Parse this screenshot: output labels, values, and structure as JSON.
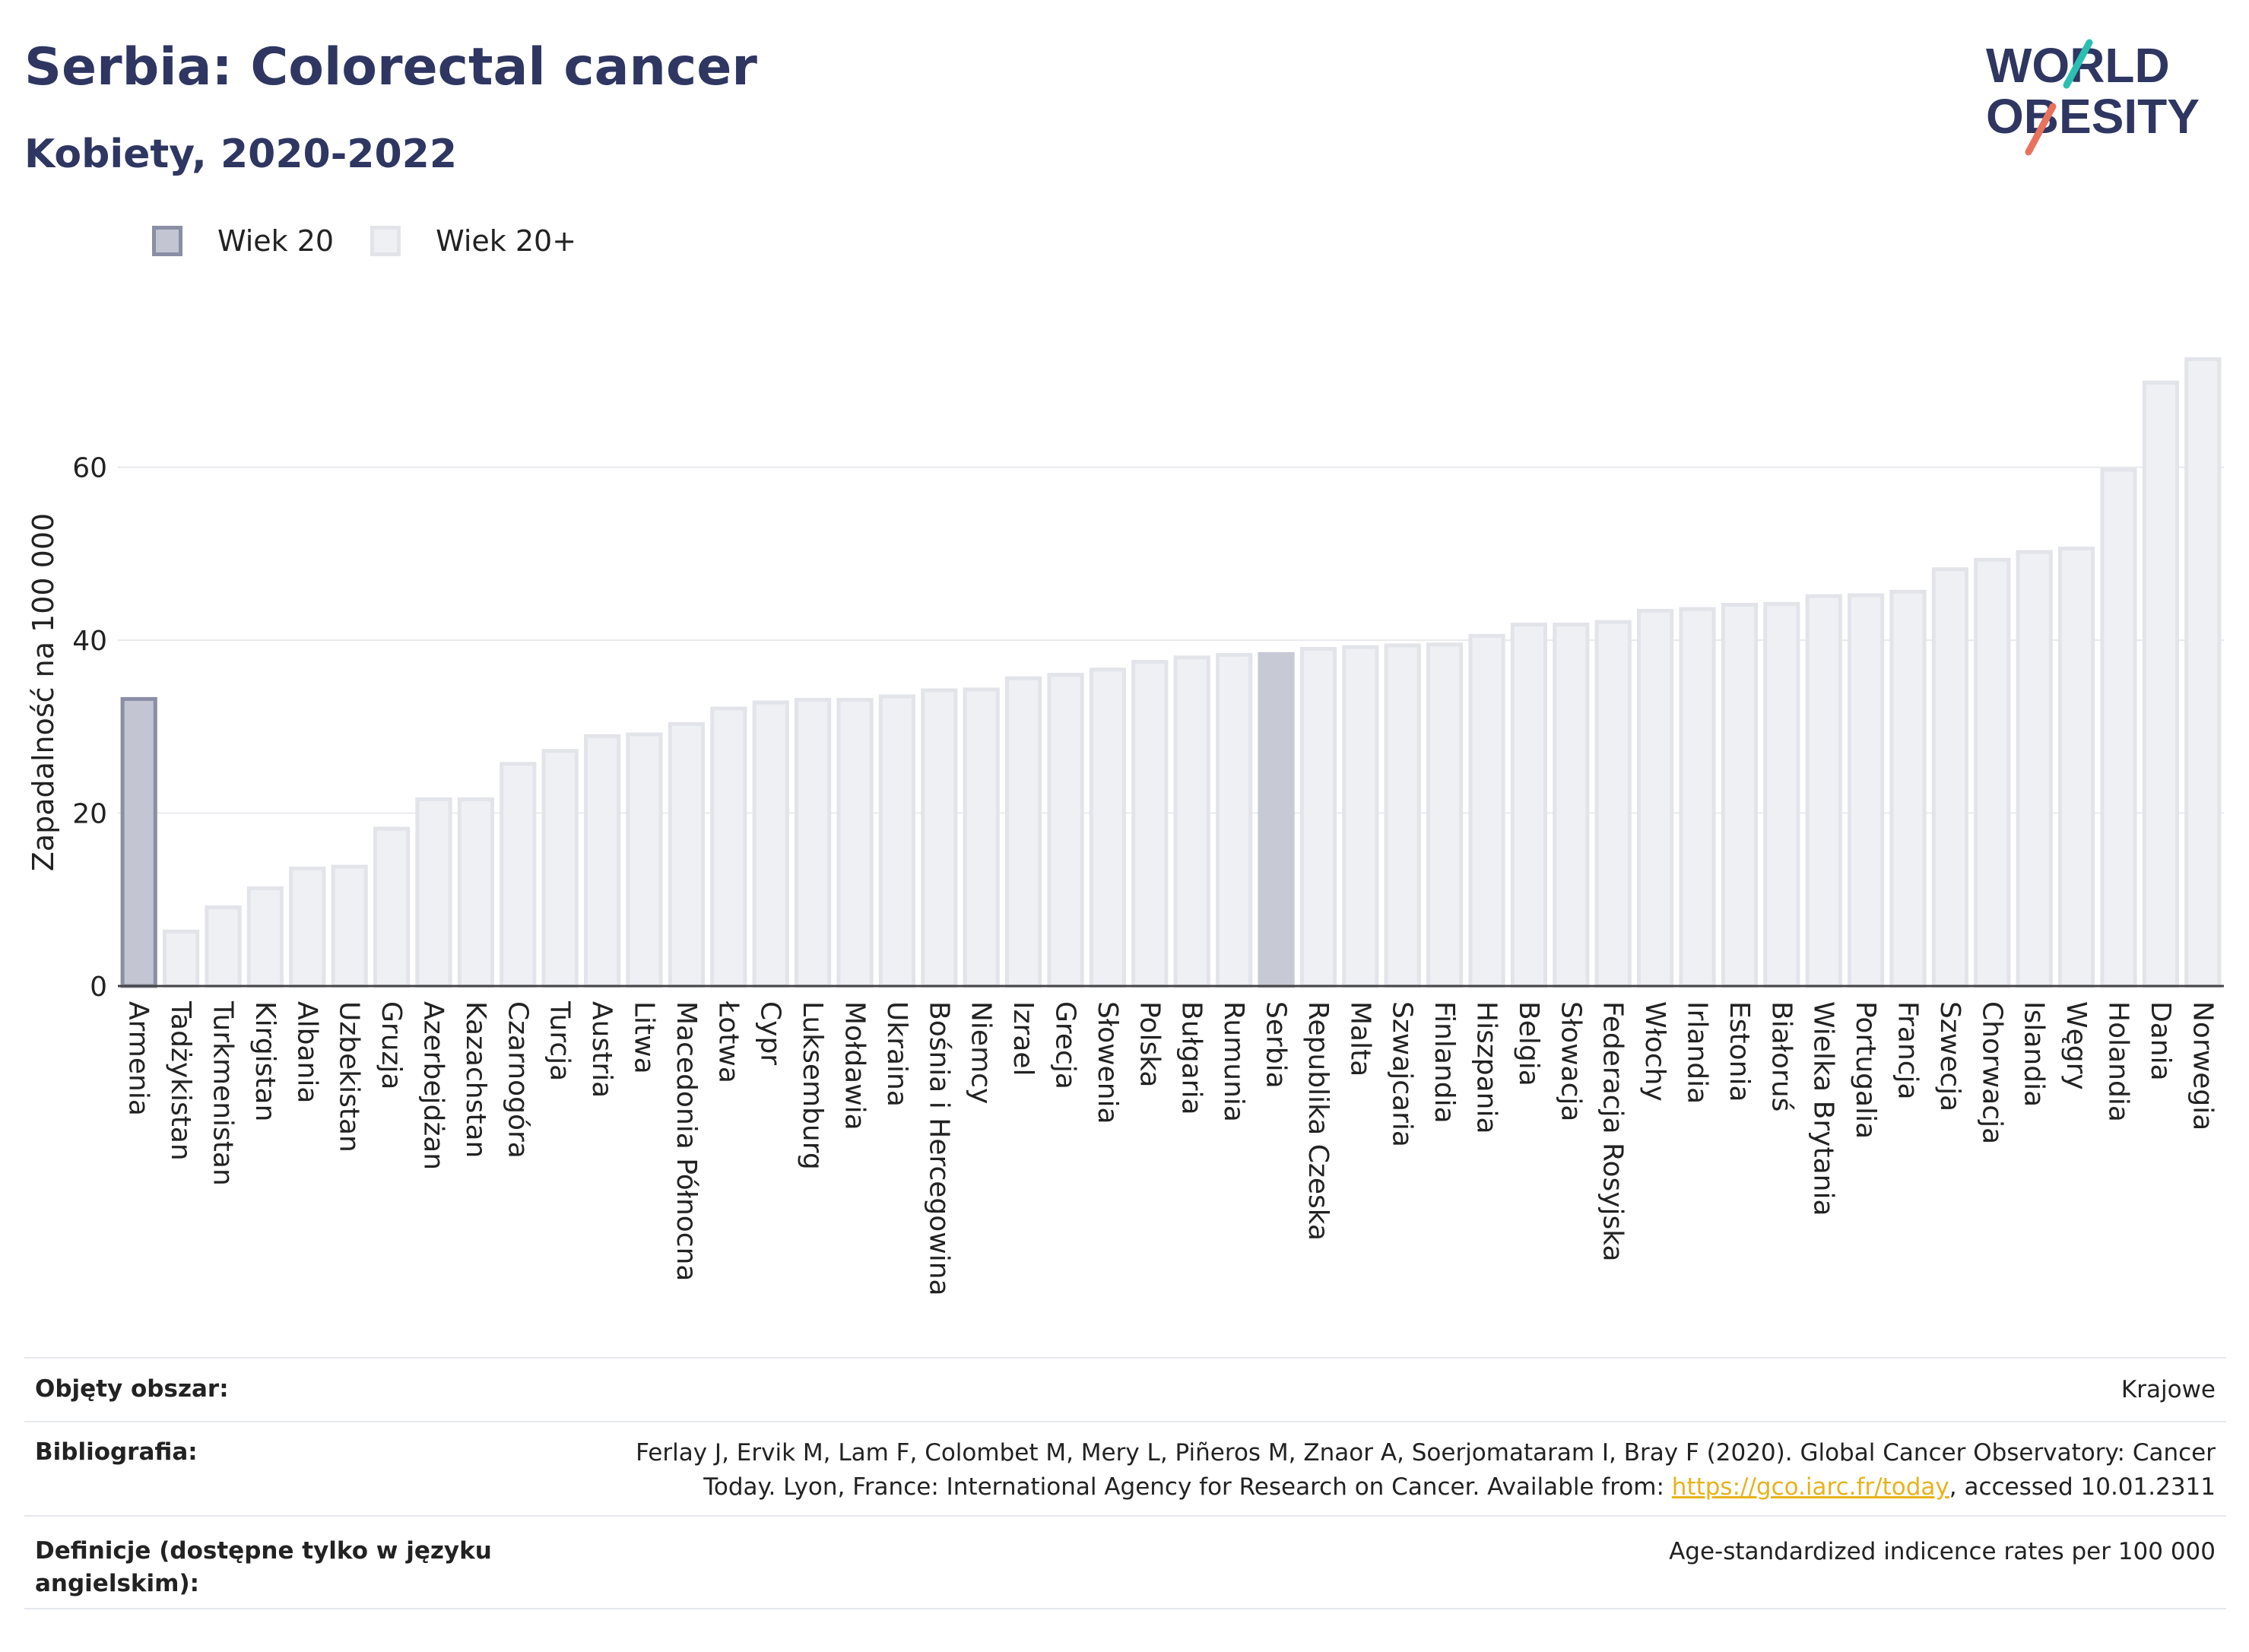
{
  "header": {
    "title": "Serbia: Colorectal cancer",
    "subtitle": "Kobiety, 2020-2022"
  },
  "logo": {
    "line1": "WORLD",
    "line2": "OBESITY",
    "slash_colors": [
      "#2bbfb1",
      "#e8725e"
    ],
    "text_color": "#2e3661"
  },
  "legend": {
    "items": [
      {
        "label": "Wiek 20",
        "fill": "#c3c5d3",
        "stroke": "#8a8ea6"
      },
      {
        "label": "Wiek 20+",
        "fill": "#eef0f4",
        "stroke": "#e2e4ea"
      }
    ]
  },
  "chart_data": {
    "type": "bar",
    "ylabel": "Zapadalność na 100 000",
    "ylim": [
      0,
      75
    ],
    "yticks": [
      0,
      20,
      40,
      60
    ],
    "grid": true,
    "legend_position": "top-left",
    "highlight": "Serbia",
    "categories": [
      "Armenia",
      "Tadżykistan",
      "Turkmenistan",
      "Kirgistan",
      "Albania",
      "Uzbekistan",
      "Gruzja",
      "Azerbejdżan",
      "Kazachstan",
      "Czarnogóra",
      "Turcja",
      "Austria",
      "Litwa",
      "Macedonia Północna",
      "Łotwa",
      "Cypr",
      "Luksemburg",
      "Mołdawia",
      "Ukraina",
      "Bośnia i Hercegowina",
      "Niemcy",
      "Izrael",
      "Grecja",
      "Słowenia",
      "Polska",
      "Bułgaria",
      "Rumunia",
      "Serbia",
      "Republika Czeska",
      "Malta",
      "Szwajcaria",
      "Finlandia",
      "Hiszpania",
      "Belgia",
      "Słowacja",
      "Federacja Rosyjska",
      "Włochy",
      "Irlandia",
      "Estonia",
      "Białoruś",
      "Wielka Brytania",
      "Portugalia",
      "Francja",
      "Szwecja",
      "Chorwacja",
      "Islandia",
      "Węgry",
      "Holandia",
      "Dania",
      "Norwegia"
    ],
    "series": [
      {
        "name": "Wiek 20",
        "values": [
          33.2,
          null,
          null,
          null,
          null,
          null,
          null,
          null,
          null,
          null,
          null,
          null,
          null,
          null,
          null,
          null,
          null,
          null,
          null,
          null,
          null,
          null,
          null,
          null,
          null,
          null,
          null,
          null,
          null,
          null,
          null,
          null,
          null,
          null,
          null,
          null,
          null,
          null,
          null,
          null,
          null,
          null,
          null,
          null,
          null,
          null,
          null,
          null,
          null,
          null
        ]
      },
      {
        "name": "Wiek 20+",
        "values": [
          null,
          6.3,
          9.1,
          11.3,
          13.6,
          13.8,
          18.2,
          21.6,
          21.6,
          25.7,
          27.2,
          28.9,
          29.1,
          30.3,
          32.1,
          32.8,
          33.1,
          33.1,
          33.5,
          34.2,
          34.3,
          35.6,
          36.0,
          36.6,
          37.5,
          38.0,
          38.3,
          38.4,
          39.0,
          39.2,
          39.4,
          39.5,
          40.5,
          41.8,
          41.8,
          42.1,
          43.4,
          43.6,
          44.1,
          44.2,
          45.1,
          45.2,
          45.6,
          48.2,
          49.3,
          50.2,
          50.6,
          59.7,
          69.8,
          72.5
        ]
      }
    ]
  },
  "info": {
    "rows": [
      {
        "label": "Objęty obszar:",
        "value": "Krajowe"
      },
      {
        "label": "Bibliografia:",
        "value_line1": "Ferlay J, Ervik M, Lam F, Colombet M, Mery L, Piñeros M, Znaor A, Soerjomataram I, Bray F (2020). Global Cancer Observatory: Cancer",
        "value_line2_pre": "Today. Lyon, France: International Agency for Research on Cancer. Available from: ",
        "link": "https://gco.iarc.fr/today",
        "value_line2_post": ", accessed 10.01.2311"
      },
      {
        "label": "Definicje (dostępne tylko w języku angielskim):",
        "value": "Age-standardized indicence rates per 100 000"
      }
    ]
  }
}
